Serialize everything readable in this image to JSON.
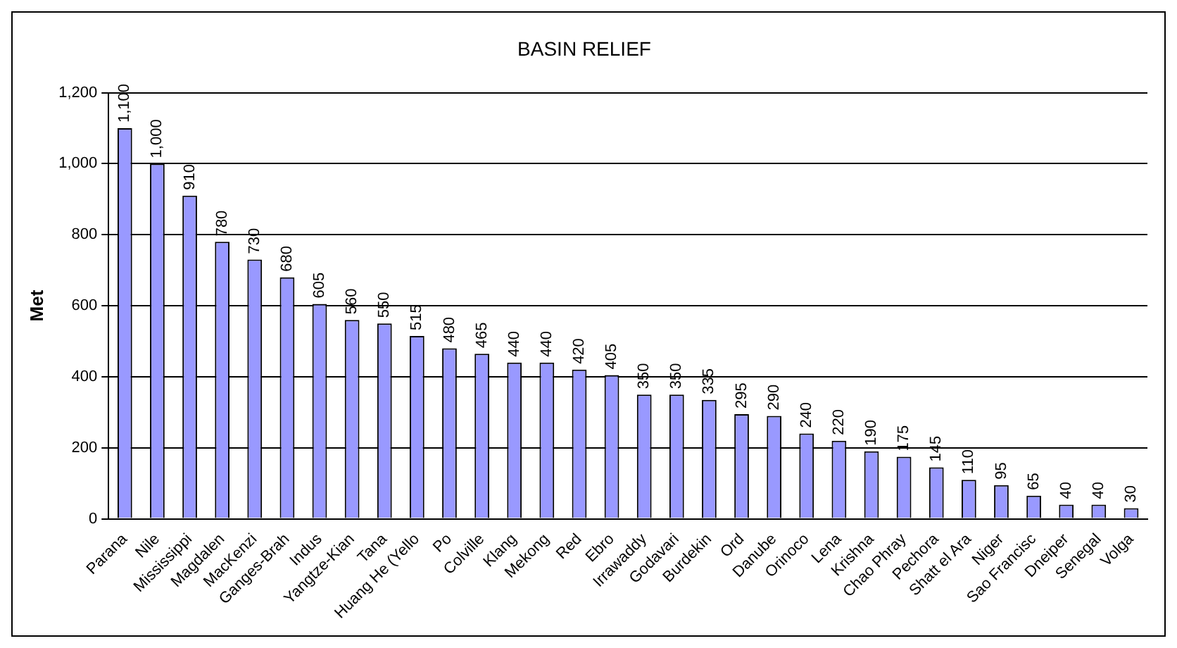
{
  "chart_data": {
    "type": "bar",
    "title": "BASIN RELIEF",
    "ylabel": "Met",
    "categories": [
      "Parana",
      "Nile",
      "Mississippi",
      "Magdalen",
      "MacKenzi",
      "Ganges-Brah",
      "Indus",
      "Yangtze-Kian",
      "Tana",
      "Huang He (Yello",
      "Po",
      "Colville",
      "Klang",
      "Mekong",
      "Red",
      "Ebro",
      "Irrawaddy",
      "Godavari",
      "Burdekin",
      "Ord",
      "Danube",
      "Orinoco",
      "Lena",
      "Krishna",
      "Chao Phray",
      "Pechora",
      "Shatt el Ara",
      "Niger",
      "Sao Francisc",
      "Dneiper",
      "Senegal",
      "Volga"
    ],
    "values": [
      1100,
      1000,
      910,
      780,
      730,
      680,
      605,
      560,
      550,
      515,
      480,
      465,
      440,
      440,
      420,
      405,
      350,
      350,
      335,
      295,
      290,
      240,
      220,
      190,
      175,
      145,
      110,
      95,
      65,
      40,
      40,
      30
    ],
    "value_labels": [
      "1,100",
      "1,000",
      "910",
      "780",
      "730",
      "680",
      "605",
      "560",
      "550",
      "515",
      "480",
      "465",
      "440",
      "440",
      "420",
      "405",
      "350",
      "350",
      "335",
      "295",
      "290",
      "240",
      "220",
      "190",
      "175",
      "145",
      "110",
      "95",
      "65",
      "40",
      "40",
      "30"
    ],
    "color": "#9999ff",
    "ylim": [
      0,
      1200
    ],
    "yticks": [
      {
        "value": 0,
        "label": "0"
      },
      {
        "value": 200,
        "label": "200"
      },
      {
        "value": 400,
        "label": "400"
      },
      {
        "value": 600,
        "label": "600"
      },
      {
        "value": 800,
        "label": "800"
      },
      {
        "value": 1000,
        "label": "1,000"
      },
      {
        "value": 1200,
        "label": "1,200"
      }
    ],
    "grid": "y",
    "legend": false
  }
}
